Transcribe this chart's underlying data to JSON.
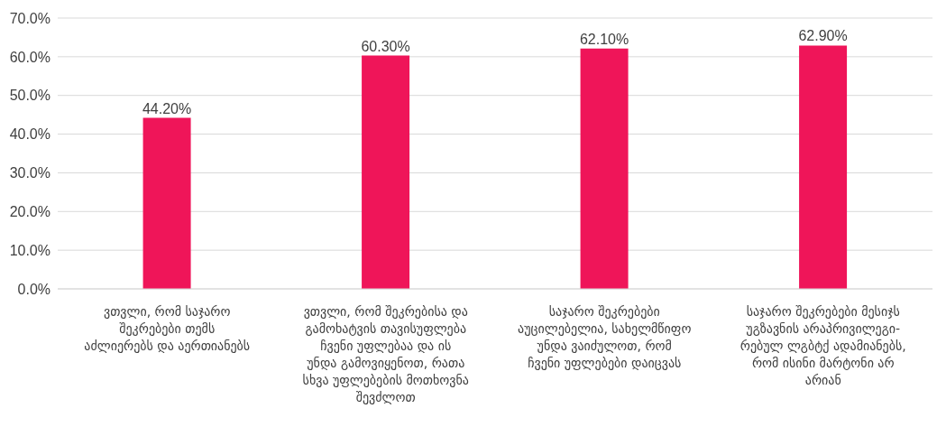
{
  "chart_data": {
    "type": "bar",
    "categories": [
      "ვთვლი, რომ საჯარო შეკრებები თემს აძლიერებს და აერთიანებს",
      "ვთვლი, რომ შეკრებისა და გამოხატვის თავისუფლება ჩვენი უფლებაა და ის უნდა გამოვიყენოთ, რათა სხვა უფლებების მოთხოვნა შევძლოთ",
      "საჯარო შეკრებები აუცილებელია, სახელმწიფო უნდა ვაიძულოთ, რომ ჩვენი უფლებები დაიცვას",
      "საჯარო შეკრებები მესიჯს უგზავნის არაპრივილეგი-რებულ ლგბტქ ადამიანებს, რომ ისინი მარტონი არ არიან"
    ],
    "values": [
      44.2,
      60.3,
      62.1,
      62.9
    ],
    "value_labels": [
      "44.20%",
      "60.30%",
      "62.10%",
      "62.90%"
    ],
    "color": "#ef1559",
    "ylim": [
      0,
      70
    ],
    "yticks": [
      {
        "value": 0,
        "label": "0.0%"
      },
      {
        "value": 10,
        "label": "10.0%"
      },
      {
        "value": 20,
        "label": "20.0%"
      },
      {
        "value": 30,
        "label": "30.0%"
      },
      {
        "value": 40,
        "label": "40.0%"
      },
      {
        "value": 50,
        "label": "50.0%"
      },
      {
        "value": 60,
        "label": "60.0%"
      },
      {
        "value": 70,
        "label": "70.0%"
      }
    ],
    "grid": "y"
  }
}
